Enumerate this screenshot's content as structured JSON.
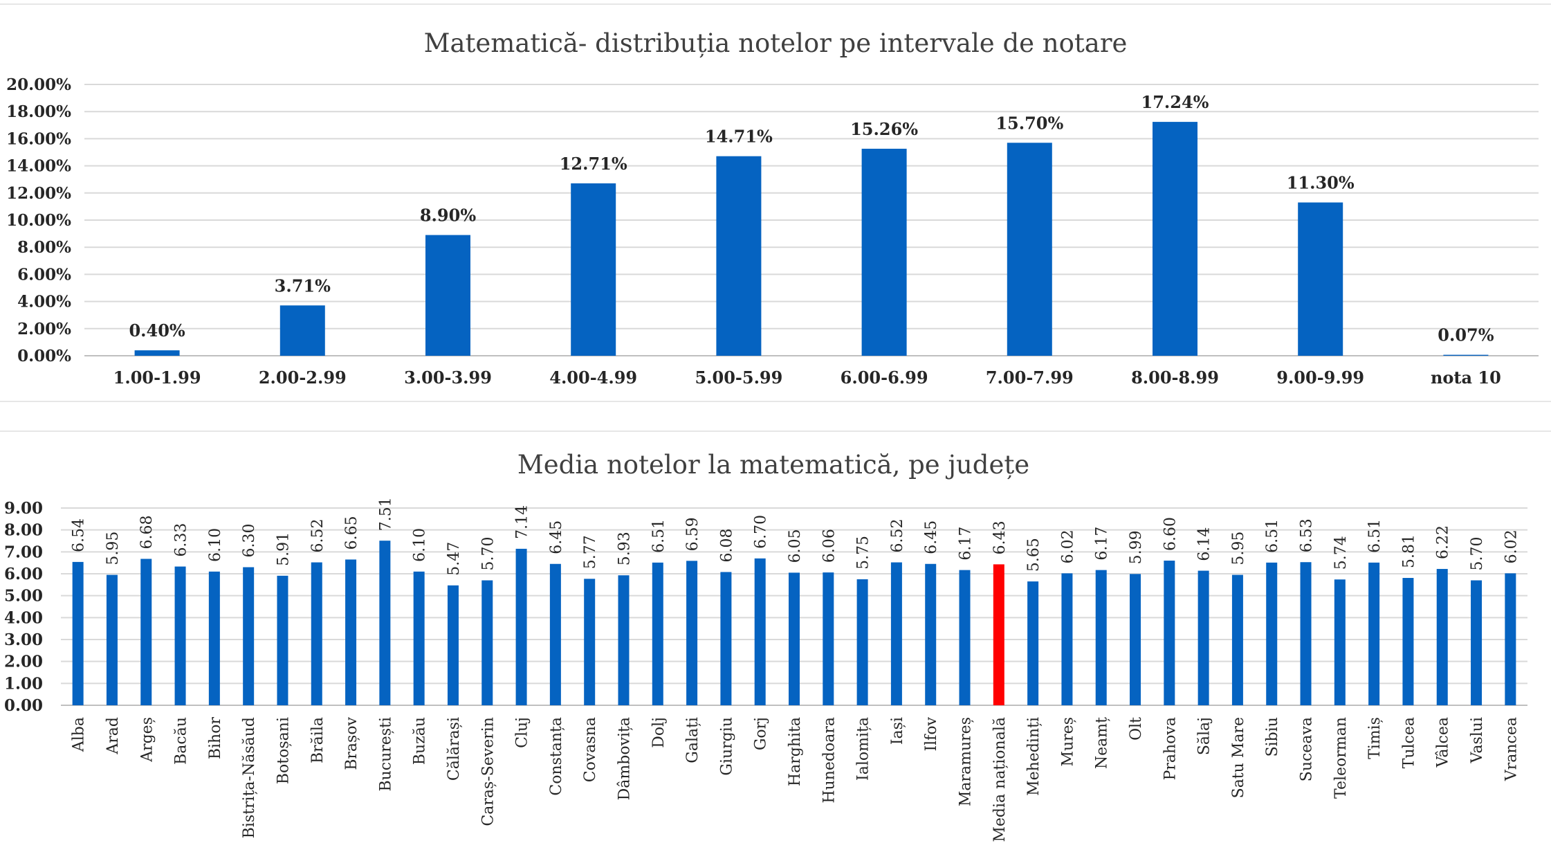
{
  "chart_data": [
    {
      "type": "bar",
      "title": "Matematică- distribuția notelor pe intervale de notare",
      "categories": [
        "1.00-1.99",
        "2.00-2.99",
        "3.00-3.99",
        "4.00-4.99",
        "5.00-5.99",
        "6.00-6.99",
        "7.00-7.99",
        "8.00-8.99",
        "9.00-9.99",
        "nota 10"
      ],
      "values": [
        0.4,
        3.71,
        8.9,
        12.71,
        14.71,
        15.26,
        15.7,
        17.24,
        11.3,
        0.07
      ],
      "data_labels": [
        "0.40%",
        "3.71%",
        "8.90%",
        "12.71%",
        "14.71%",
        "15.26%",
        "15.70%",
        "17.24%",
        "11.30%",
        "0.07%"
      ],
      "yticks": [
        "0.00%",
        "2.00%",
        "4.00%",
        "6.00%",
        "8.00%",
        "10.00%",
        "12.00%",
        "14.00%",
        "16.00%",
        "18.00%",
        "20.00%"
      ],
      "ylim": [
        0,
        20
      ],
      "grid": true,
      "bar_color": "#0563C1"
    },
    {
      "type": "bar",
      "title": "Media notelor la  matematică, pe județe",
      "categories": [
        "Alba",
        "Arad",
        "Argeș",
        "Bacău",
        "Bihor",
        "Bistrița-Năsăud",
        "Botoșani",
        "Brăila",
        "Brașov",
        "București",
        "Buzău",
        "Călărași",
        "Caraș-Severin",
        "Cluj",
        "Constanța",
        "Covasna",
        "Dâmbovița",
        "Dolj",
        "Galați",
        "Giurgiu",
        "Gorj",
        "Harghita",
        "Hunedoara",
        "Ialomița",
        "Iași",
        "Ilfov",
        "Maramureș",
        "Media națională",
        "Mehedinți",
        "Mureș",
        "Neamț",
        "Olt",
        "Prahova",
        "Sălaj",
        "Satu Mare",
        "Sibiu",
        "Suceava",
        "Teleorman",
        "Timiș",
        "Tulcea",
        "Vâlcea",
        "Vaslui",
        "Vrancea"
      ],
      "values": [
        6.54,
        5.95,
        6.68,
        6.33,
        6.1,
        6.3,
        5.91,
        6.52,
        6.65,
        7.51,
        6.1,
        5.47,
        5.7,
        7.14,
        6.45,
        5.77,
        5.93,
        6.51,
        6.59,
        6.08,
        6.7,
        6.05,
        6.06,
        5.75,
        6.52,
        6.45,
        6.17,
        6.43,
        5.65,
        6.02,
        6.17,
        5.99,
        6.6,
        6.14,
        5.95,
        6.51,
        6.53,
        5.74,
        6.51,
        5.81,
        6.22,
        5.7,
        6.02
      ],
      "data_labels": [
        "6.54",
        "5.95",
        "6.68",
        "6.33",
        "6.10",
        "6.30",
        "5.91",
        "6.52",
        "6.65",
        "7.51",
        "6.10",
        "5.47",
        "5.70",
        "7.14",
        "6.45",
        "5.77",
        "5.93",
        "6.51",
        "6.59",
        "6.08",
        "6.70",
        "6.05",
        "6.06",
        "5.75",
        "6.52",
        "6.45",
        "6.17",
        "6.43",
        "5.65",
        "6.02",
        "6.17",
        "5.99",
        "6.60",
        "6.14",
        "5.95",
        "6.51",
        "6.53",
        "5.74",
        "6.51",
        "5.81",
        "6.22",
        "5.70",
        "6.02"
      ],
      "yticks": [
        "0.00",
        "1.00",
        "2.00",
        "3.00",
        "4.00",
        "5.00",
        "6.00",
        "7.00",
        "8.00",
        "9.00"
      ],
      "ylim": [
        0,
        9
      ],
      "grid": true,
      "bar_color": "#0563C1",
      "highlight_category": "Media națională",
      "highlight_color": "#FF0000"
    }
  ]
}
